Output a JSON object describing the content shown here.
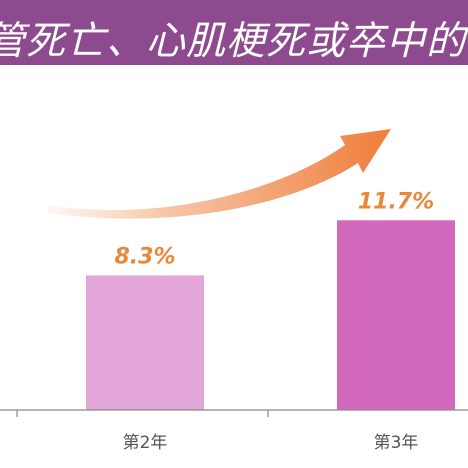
{
  "title": "管死亡、心肌梗死或卒中的累积发",
  "colors": {
    "title_bg": "#8e4a8f",
    "label": "#e8883a",
    "arrow": "#f07d3a",
    "axis": "#888888"
  },
  "chart_data": {
    "type": "bar",
    "categories": [
      "第2年",
      "第3年"
    ],
    "values": [
      8.3,
      11.7
    ],
    "value_labels": [
      "8.3%",
      "11.7%"
    ],
    "colors": [
      "#e3a6d9",
      "#d269bd"
    ],
    "ylim": [
      0,
      18.5
    ],
    "title": "管死亡、心肌梗死或卒中的累积发",
    "xlabel": "",
    "ylabel": "",
    "grid": false,
    "annotations": [
      "increasing-trend-arrow"
    ]
  }
}
